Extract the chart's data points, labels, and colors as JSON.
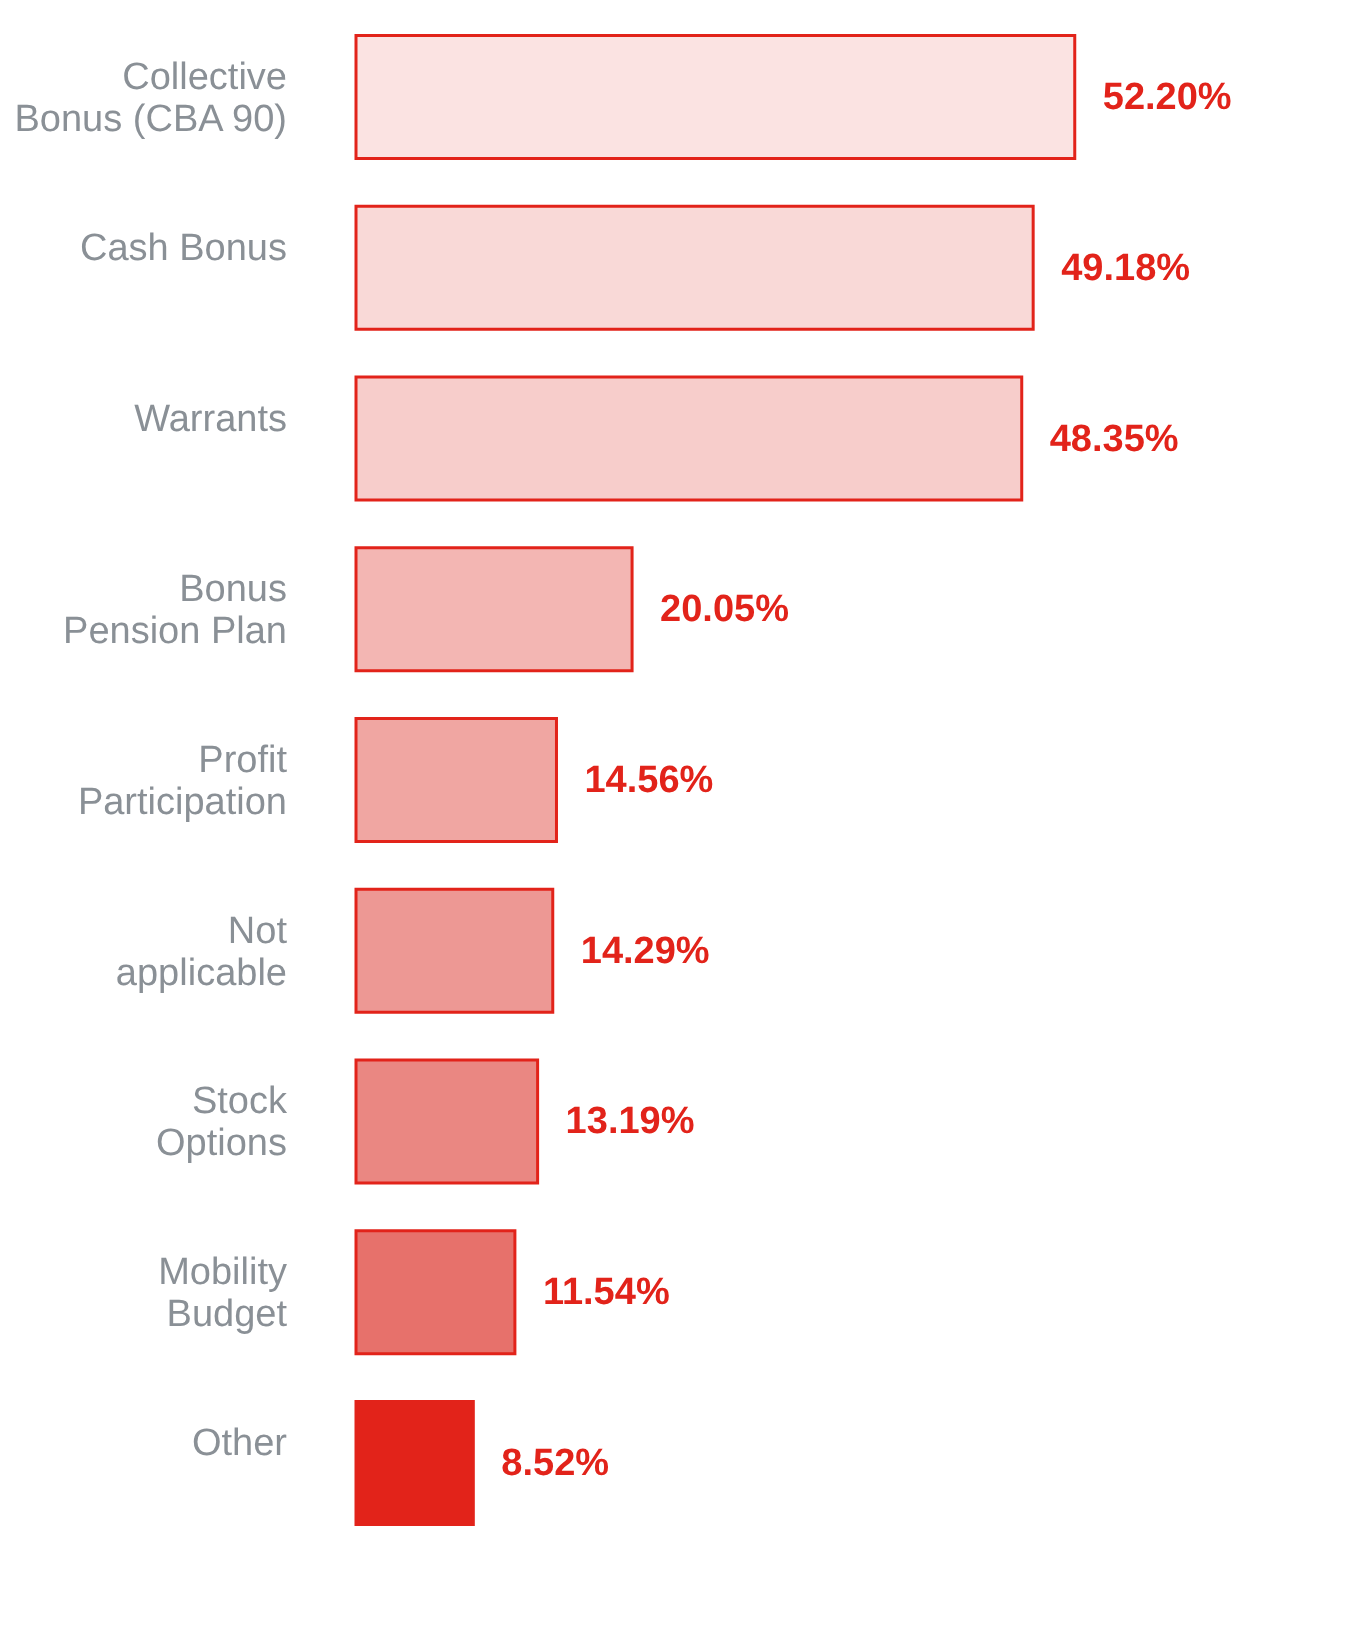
{
  "chart_data": {
    "type": "bar",
    "orientation": "horizontal",
    "categories": [
      "Collective\nBonus (CBA 90)",
      "Cash Bonus",
      "Warrants",
      "Bonus\nPension Plan",
      "Profit\nParticipation",
      "Not\napplicable",
      "Stock\nOptions",
      "Mobility\nBudget",
      "Other"
    ],
    "values": [
      52.2,
      49.18,
      48.35,
      20.05,
      14.56,
      14.29,
      13.19,
      11.54,
      8.52
    ],
    "value_labels": [
      "52.20%",
      "49.18%",
      "48.35%",
      "20.05%",
      "14.56%",
      "14.29%",
      "13.19%",
      "11.54%",
      "8.52%"
    ],
    "colors": [
      "#fbe3e2",
      "#f9d9d7",
      "#f7cdcb",
      "#f3b6b3",
      "#f0a6a2",
      "#ed9894",
      "#ea8782",
      "#e7716b",
      "#e2231a"
    ],
    "grid": false
  }
}
